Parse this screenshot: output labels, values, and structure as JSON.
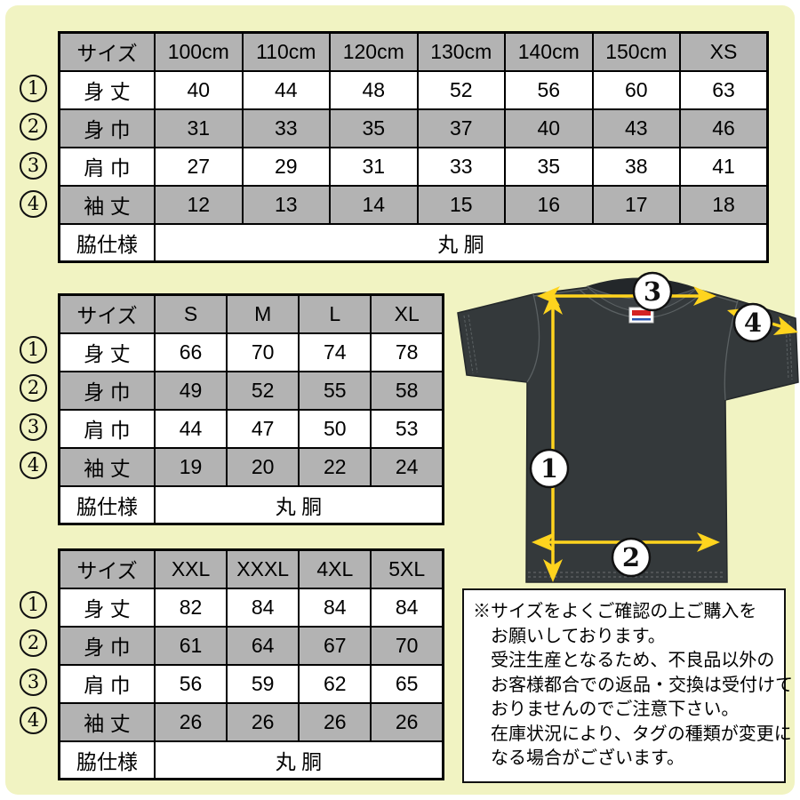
{
  "colors": {
    "background": "#f1f3c2",
    "table_header_gray": "#b3b3b3",
    "row_alt_gray": "#b3b3b3",
    "table_border": "#000000",
    "shirt_body": "#34393b",
    "arrow_yellow": "#ffd41e",
    "note_background": "#ffffff"
  },
  "row_markers": [
    "1",
    "2",
    "3",
    "4"
  ],
  "tables": [
    {
      "title": "kids-and-xs-sizes",
      "header": [
        "サイズ",
        "100cm",
        "110cm",
        "120cm",
        "130cm",
        "140cm",
        "150cm",
        "XS"
      ],
      "rows": [
        {
          "marker": "1",
          "label": "身 丈",
          "values": [
            "40",
            "44",
            "48",
            "52",
            "56",
            "60",
            "63"
          ]
        },
        {
          "marker": "2",
          "label": "身 巾",
          "values": [
            "31",
            "33",
            "35",
            "37",
            "40",
            "43",
            "46"
          ]
        },
        {
          "marker": "3",
          "label": "肩 巾",
          "values": [
            "27",
            "29",
            "31",
            "33",
            "35",
            "38",
            "41"
          ]
        },
        {
          "marker": "4",
          "label": "袖 丈",
          "values": [
            "12",
            "13",
            "14",
            "15",
            "16",
            "17",
            "18"
          ]
        }
      ],
      "footer_label": "脇仕様",
      "footer_value": "丸 胴"
    },
    {
      "title": "adult-sizes",
      "header": [
        "サイズ",
        "S",
        "M",
        "L",
        "XL"
      ],
      "rows": [
        {
          "marker": "1",
          "label": "身 丈",
          "values": [
            "66",
            "70",
            "74",
            "78"
          ]
        },
        {
          "marker": "2",
          "label": "身 巾",
          "values": [
            "49",
            "52",
            "55",
            "58"
          ]
        },
        {
          "marker": "3",
          "label": "肩 巾",
          "values": [
            "44",
            "47",
            "50",
            "53"
          ]
        },
        {
          "marker": "4",
          "label": "袖 丈",
          "values": [
            "19",
            "20",
            "22",
            "24"
          ]
        }
      ],
      "footer_label": "脇仕様",
      "footer_value": "丸 胴"
    },
    {
      "title": "plus-sizes",
      "header": [
        "サイズ",
        "XXL",
        "XXXL",
        "4XL",
        "5XL"
      ],
      "rows": [
        {
          "marker": "1",
          "label": "身 丈",
          "values": [
            "82",
            "84",
            "84",
            "84"
          ]
        },
        {
          "marker": "2",
          "label": "身 巾",
          "values": [
            "61",
            "64",
            "67",
            "70"
          ]
        },
        {
          "marker": "3",
          "label": "肩 巾",
          "values": [
            "56",
            "59",
            "62",
            "65"
          ]
        },
        {
          "marker": "4",
          "label": "袖 丈",
          "values": [
            "26",
            "26",
            "26",
            "26"
          ]
        }
      ],
      "footer_label": "脇仕様",
      "footer_value": "丸 胴"
    }
  ],
  "diagram": {
    "marker_labels": [
      "1",
      "2",
      "3",
      "4"
    ]
  },
  "note": {
    "lines": [
      "※サイズをよくご確認の上ご購入を",
      "お願いしております。",
      "受注生産となるため、不良品以外の",
      "お客様都合での返品・交換は受付けて",
      "おりませんのでご注意下さい。",
      "在庫状況により、タグの種類が変更に",
      "なる場合がございます。"
    ]
  }
}
